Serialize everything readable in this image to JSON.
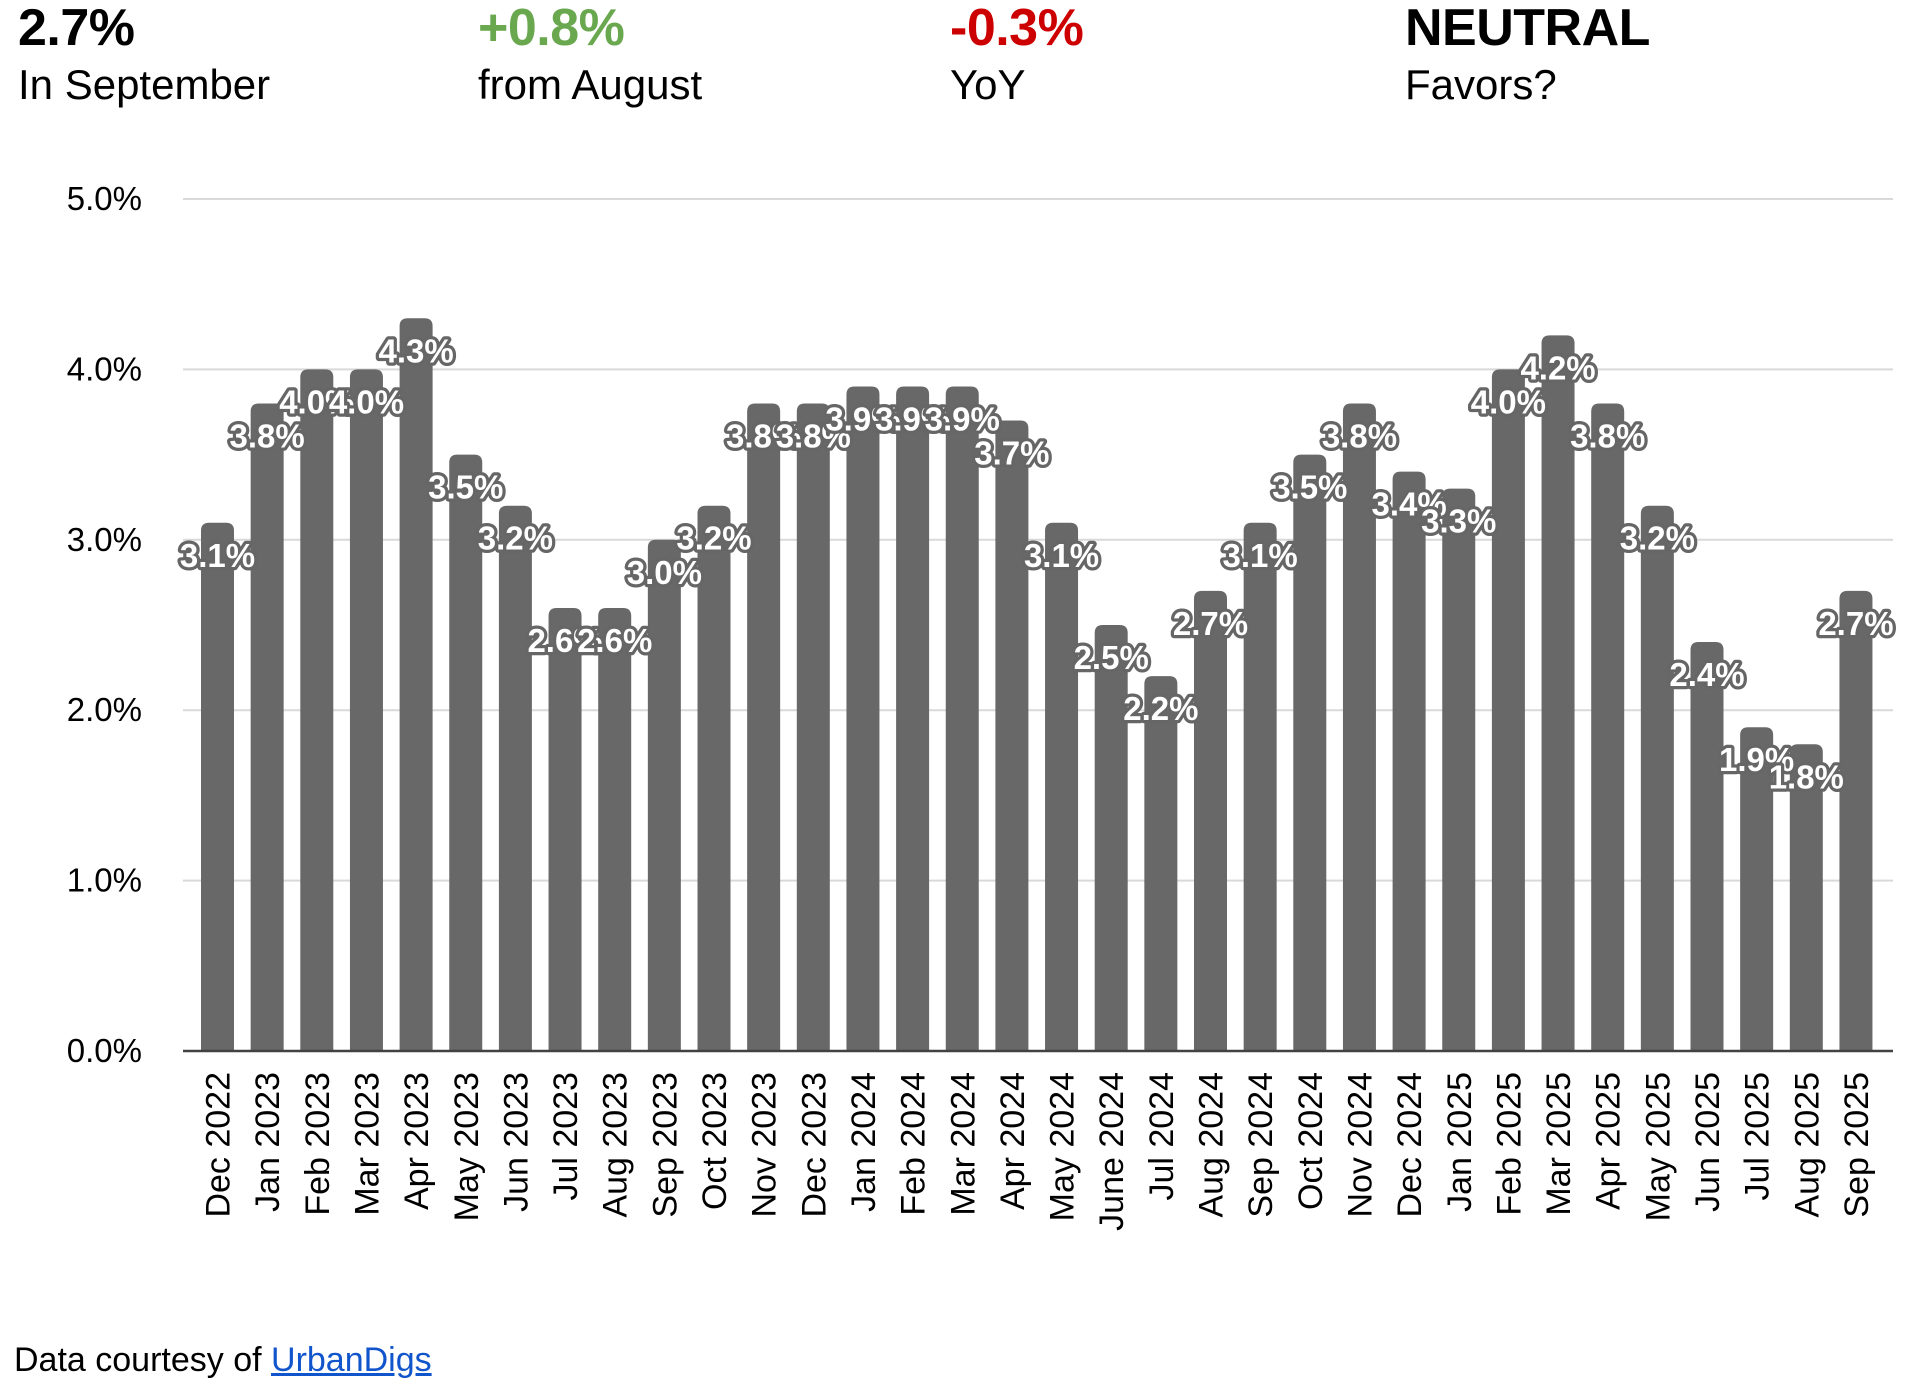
{
  "stats": [
    {
      "value": "2.7%",
      "label": "In September",
      "color": "#000000"
    },
    {
      "value": "+0.8%",
      "label": "from August",
      "color": "#6aa84f"
    },
    {
      "value": "-0.3%",
      "label": "YoY",
      "color": "#cc0000"
    },
    {
      "value": "NEUTRAL",
      "label": "Favors?",
      "color": "#000000"
    }
  ],
  "chart_data": {
    "type": "bar",
    "categories": [
      "Dec 2022",
      "Jan 2023",
      "Feb 2023",
      "Mar 2023",
      "Apr 2023",
      "May 2023",
      "Jun 2023",
      "Jul 2023",
      "Aug 2023",
      "Sep 2023",
      "Oct 2023",
      "Nov 2023",
      "Dec 2023",
      "Jan 2024",
      "Feb 2024",
      "Mar 2024",
      "Apr 2024",
      "May 2024",
      "June 2024",
      "Jul 2024",
      "Aug 2024",
      "Sep 2024",
      "Oct 2024",
      "Nov 2024",
      "Dec 2024",
      "Jan 2025",
      "Feb 2025",
      "Mar 2025",
      "Apr 2025",
      "May 2025",
      "Jun 2025",
      "Jul 2025",
      "Aug 2025",
      "Sep 2025"
    ],
    "values": [
      3.1,
      3.8,
      4.0,
      4.0,
      4.3,
      3.5,
      3.2,
      2.6,
      2.6,
      3.0,
      3.2,
      3.8,
      3.8,
      3.9,
      3.9,
      3.9,
      3.7,
      3.1,
      2.5,
      2.2,
      2.7,
      3.1,
      3.5,
      3.8,
      3.4,
      3.3,
      4.0,
      4.2,
      3.8,
      3.2,
      2.4,
      1.9,
      1.8,
      2.7
    ],
    "data_label_suffix": "%",
    "y_ticks": [
      "0.0%",
      "1.0%",
      "2.0%",
      "3.0%",
      "4.0%",
      "5.0%"
    ],
    "ylim": [
      0,
      5
    ],
    "xlabel": "",
    "ylabel": "",
    "legend": "none",
    "grid": "horizontal",
    "bar_color": "#686868",
    "data_label_fill": "#ffffff",
    "data_label_stroke": "#666666",
    "gridline_color": "#d9d9d9",
    "axis_line_color": "#424242",
    "tick_text_color": "#000000"
  },
  "footer": {
    "prefix": "Data courtesy of ",
    "link_text": "UrbanDigs"
  }
}
